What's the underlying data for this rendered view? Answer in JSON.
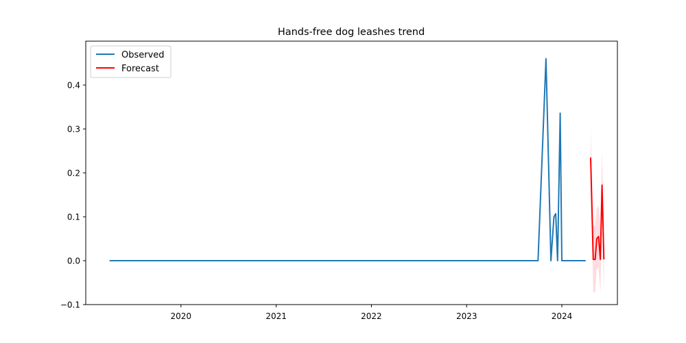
{
  "chart_data": {
    "type": "line",
    "title": "Hands-free dog leashes trend",
    "xlabel": "",
    "ylabel": "",
    "x_ticks": [
      "2020",
      "2021",
      "2022",
      "2023",
      "2024"
    ],
    "y_ticks": [
      "−0.1",
      "0.0",
      "0.1",
      "0.2",
      "0.3",
      "0.4"
    ],
    "ylim": [
      -0.1,
      0.5
    ],
    "xlim": [
      "2019-01",
      "2024-08"
    ],
    "legend": {
      "position": "top-left",
      "entries": [
        "Observed",
        "Forecast"
      ]
    },
    "grid": false,
    "series": [
      {
        "name": "Observed",
        "color": "#1f77b4",
        "points": [
          [
            "2019-04",
            0.0
          ],
          [
            "2023-10",
            0.0
          ],
          [
            "2023-11",
            0.46
          ],
          [
            "2023-11-20",
            0.0
          ],
          [
            "2023-12",
            0.1
          ],
          [
            "2023-12-08",
            0.107
          ],
          [
            "2023-12-15",
            0.0
          ],
          [
            "2023-12-25",
            0.336
          ],
          [
            "2024-01",
            0.0
          ],
          [
            "2024-04",
            0.0
          ]
        ]
      },
      {
        "name": "Forecast",
        "color": "#ff0000",
        "band_color": "#ffc0cb",
        "points": [
          [
            "2024-04-20",
            0.235,
            0.305,
            0.165
          ],
          [
            "2024-04-30",
            0.003,
            0.08,
            -0.072
          ],
          [
            "2024-05-07",
            0.003,
            0.08,
            -0.072
          ],
          [
            "2024-05-13",
            0.05,
            0.12,
            -0.02
          ],
          [
            "2024-05-20",
            0.055,
            0.125,
            -0.015
          ],
          [
            "2024-05-27",
            0.003,
            0.075,
            -0.075
          ],
          [
            "2024-06-03",
            0.172,
            0.248,
            0.095
          ],
          [
            "2024-06-10",
            0.003,
            0.077,
            -0.075
          ]
        ]
      }
    ]
  }
}
